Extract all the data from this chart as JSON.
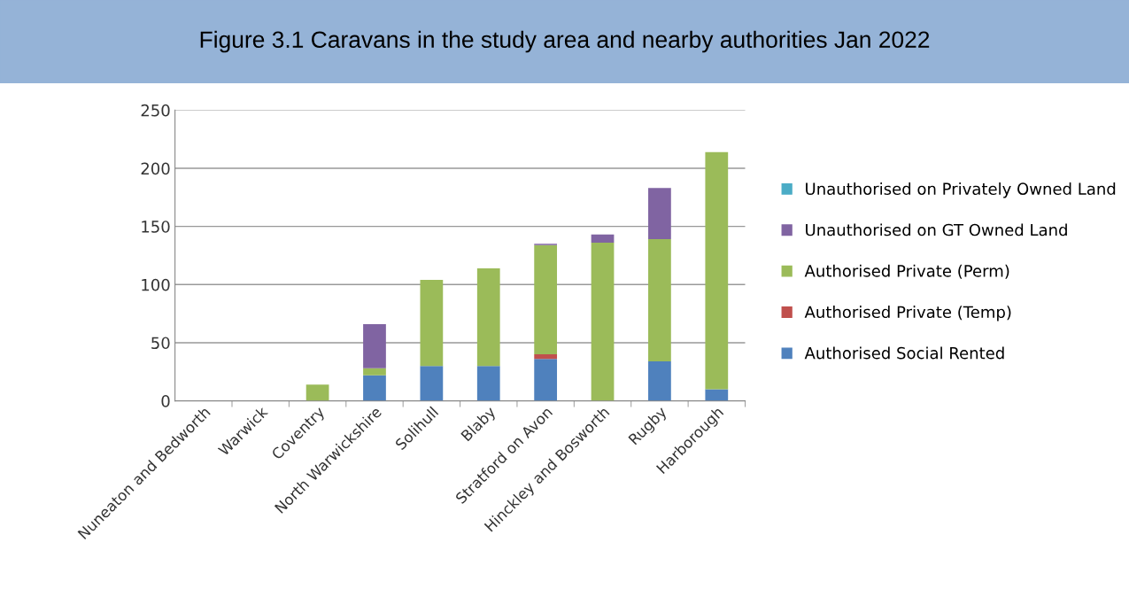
{
  "chart_data": {
    "type": "bar",
    "stacked": true,
    "title": "Figure 3.1 Caravans in the study area and nearby authorities Jan 2022",
    "categories": [
      "Nuneaton and Bedworth",
      "Warwick",
      "Coventry",
      "North Warwickshire",
      "Solihull",
      "Blaby",
      "Stratford on Avon",
      "Hinckley and Bosworth",
      "Rugby",
      "Harborough"
    ],
    "series": [
      {
        "name": "Authorised Social Rented",
        "color": "#4f81bd",
        "values": [
          0,
          0,
          0,
          22,
          30,
          30,
          36,
          0,
          34,
          10
        ]
      },
      {
        "name": "Authorised Private (Temp)",
        "color": "#c0504d",
        "values": [
          0,
          0,
          0,
          0,
          0,
          0,
          4,
          0,
          0,
          0
        ]
      },
      {
        "name": "Authorised Private (Perm)",
        "color": "#9bbb59",
        "values": [
          0,
          0,
          14,
          6,
          74,
          84,
          94,
          136,
          105,
          204
        ]
      },
      {
        "name": "Unauthorised on GT Owned Land",
        "color": "#8064a2",
        "values": [
          0,
          0,
          0,
          38,
          0,
          0,
          1,
          7,
          44,
          0
        ]
      },
      {
        "name": "Unauthorised on Privately Owned Land",
        "color": "#4bacc6",
        "values": [
          0,
          0,
          0,
          0,
          0,
          0,
          0,
          0,
          0,
          0
        ]
      }
    ],
    "ylim": [
      0,
      250
    ],
    "yticks": [
      0,
      50,
      100,
      150,
      200,
      250
    ],
    "grid": "y",
    "legend": "right"
  }
}
